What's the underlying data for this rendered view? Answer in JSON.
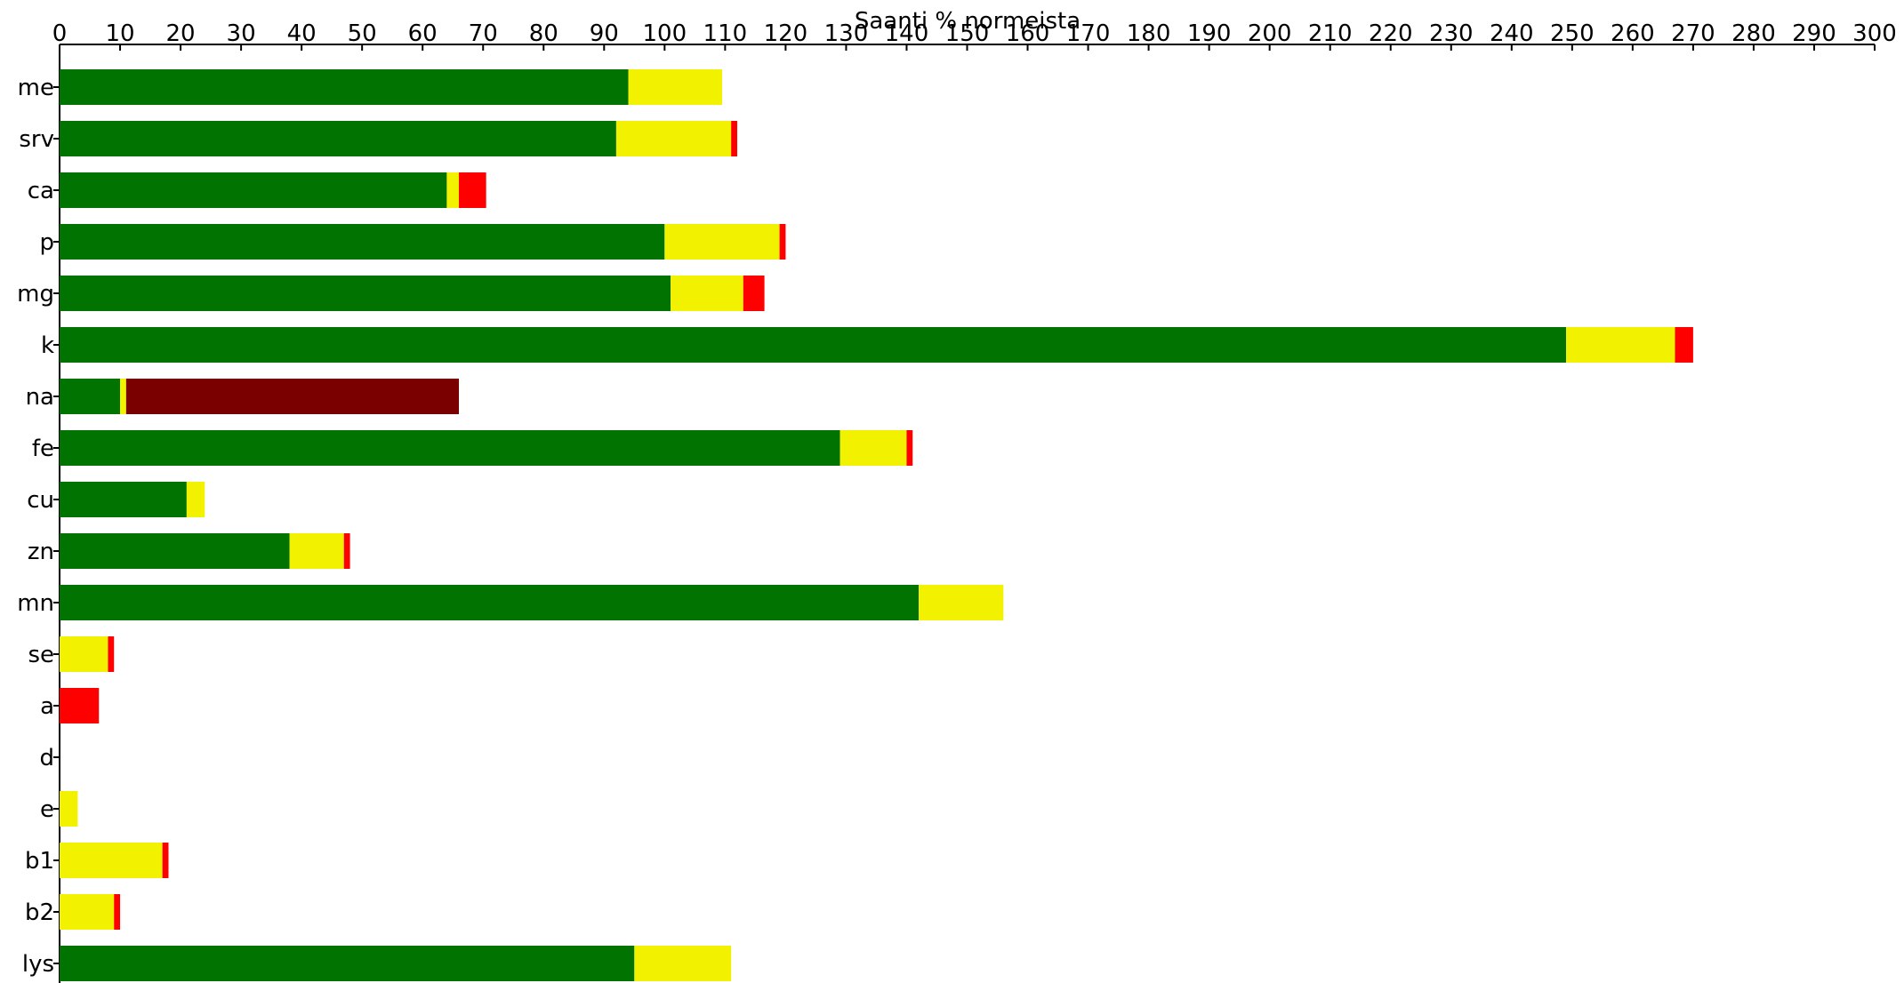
{
  "chart_data": {
    "type": "bar",
    "orientation": "horizontal",
    "stacked": true,
    "title": "Saanti % normeista",
    "xlim": [
      0,
      300
    ],
    "x_ticks": [
      0,
      10,
      20,
      30,
      40,
      50,
      60,
      70,
      80,
      90,
      100,
      110,
      120,
      130,
      140,
      150,
      160,
      170,
      180,
      190,
      200,
      210,
      220,
      230,
      240,
      250,
      260,
      270,
      280,
      290,
      300
    ],
    "categories": [
      "me",
      "srv",
      "ca",
      "p",
      "mg",
      "k",
      "na",
      "fe",
      "cu",
      "zn",
      "mn",
      "se",
      "a",
      "d",
      "e",
      "b1",
      "b2",
      "lys"
    ],
    "series": [
      {
        "color": "#007300",
        "values": [
          94,
          92,
          64,
          100,
          101,
          249,
          10,
          129,
          21,
          38,
          142,
          0,
          0,
          0,
          0,
          0,
          0,
          95
        ]
      },
      {
        "color": "#f2f200",
        "values": [
          15.5,
          19,
          2,
          19,
          12,
          18,
          1,
          11,
          3,
          9,
          14,
          8,
          0,
          0,
          3,
          17,
          9,
          16
        ]
      },
      {
        "color": "#ff0000",
        "values": [
          0,
          1,
          4.5,
          1,
          3.5,
          3,
          0,
          1,
          0,
          1,
          0,
          1,
          6.5,
          0,
          0,
          1,
          1,
          0
        ]
      },
      {
        "color": "#7a0000",
        "values": [
          0,
          0,
          0,
          0,
          0,
          0,
          55,
          0,
          0,
          0,
          0,
          0,
          0,
          0,
          0,
          0,
          0,
          0
        ]
      }
    ],
    "grid": false,
    "legend": "none"
  }
}
